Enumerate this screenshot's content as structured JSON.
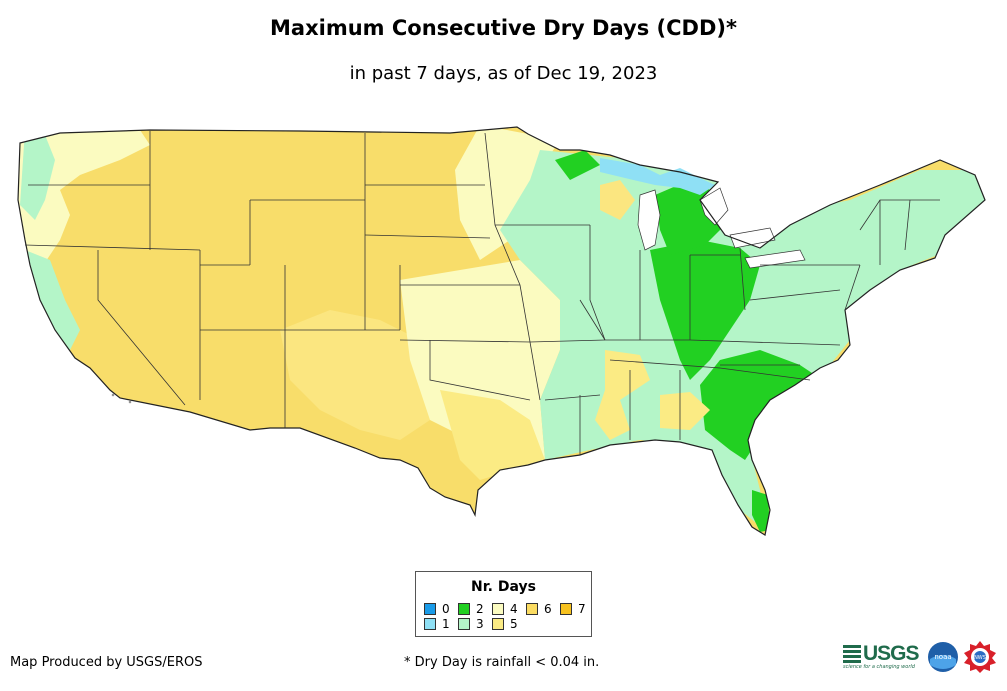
{
  "title": "Maximum Consecutive Dry Days (CDD)*",
  "subtitle": "in past 7 days, as of Dec 19, 2023",
  "legend": {
    "title": "Nr. Days",
    "items": [
      {
        "label": "0",
        "color": "#1a9be8"
      },
      {
        "label": "1",
        "color": "#8fe0f5"
      },
      {
        "label": "2",
        "color": "#22d022"
      },
      {
        "label": "3",
        "color": "#b4f5c8"
      },
      {
        "label": "4",
        "color": "#fbfbc0"
      },
      {
        "label": "5",
        "color": "#fbeb84"
      },
      {
        "label": "6",
        "color": "#fbdc62"
      },
      {
        "label": "7",
        "color": "#f7c21f"
      }
    ]
  },
  "credit": "Map Produced by USGS/EROS",
  "footnote": "* Dry Day is rainfall < 0.04 in.",
  "logos": {
    "usgs": "USGS",
    "usgs_tagline": "science for a changing world",
    "noaa": "noaa",
    "nws": "NWS"
  }
}
